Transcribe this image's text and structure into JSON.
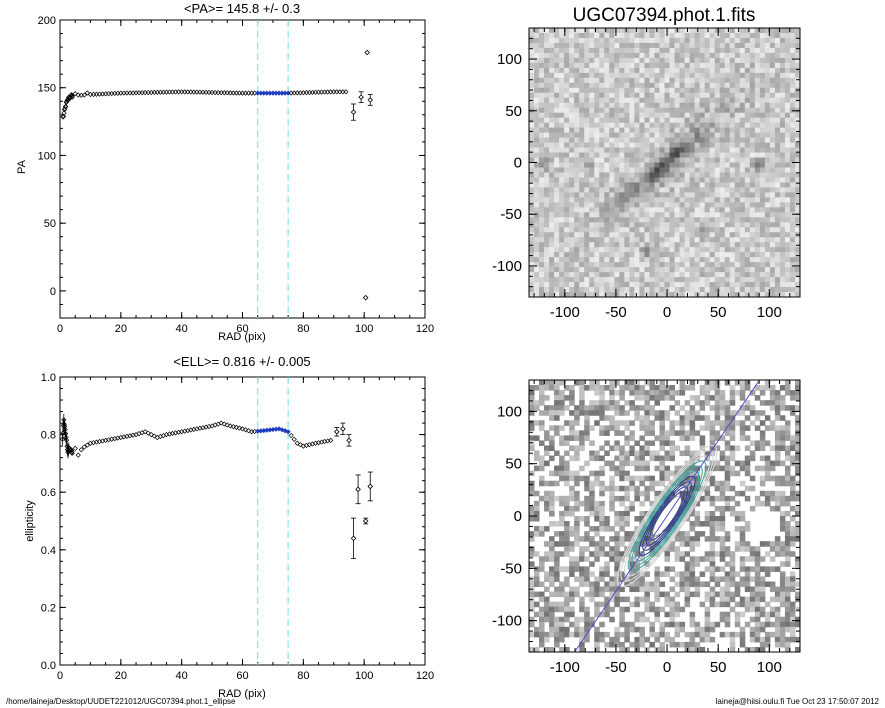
{
  "footer": {
    "left": "/home/laineja/Desktop/UUDET221012/UGC07394.phot.1_ellipse",
    "right": "laineja@hiisi.oulu.fi  Tue Oct 23 17:50:07 2012"
  },
  "colors": {
    "markers": "#000000",
    "highlight": "#1f3fbf",
    "vline": "#7fe6f0",
    "axisline": "#5050c8",
    "contour": "#2f3f8f"
  },
  "chart_data": [
    {
      "type": "scatter",
      "title": "<PA>= 145.8 +/-   0.3",
      "xlabel": "RAD (pix)",
      "ylabel": "PA",
      "xlim": [
        0,
        120
      ],
      "ylim": [
        -20,
        200
      ],
      "xticks": [
        0,
        20,
        40,
        60,
        80,
        100,
        120
      ],
      "yticks": [
        0,
        50,
        100,
        150,
        200
      ],
      "vlines": [
        65,
        75
      ],
      "highlight_range": [
        65,
        75
      ],
      "errorbar_points": [
        {
          "x": 96.5,
          "y": 132,
          "err": 6
        },
        {
          "x": 99,
          "y": 143,
          "err": 4
        },
        {
          "x": 102,
          "y": 141,
          "err": 4
        }
      ],
      "outlier_points": [
        {
          "x": 101,
          "y": 176
        },
        {
          "x": 100.5,
          "y": -5
        }
      ],
      "profile": [
        {
          "x": 1,
          "y": 128
        },
        {
          "x": 1.5,
          "y": 133
        },
        {
          "x": 2,
          "y": 138
        },
        {
          "x": 3,
          "y": 143
        },
        {
          "x": 5,
          "y": 145
        },
        {
          "x": 10,
          "y": 145
        },
        {
          "x": 20,
          "y": 146
        },
        {
          "x": 40,
          "y": 147
        },
        {
          "x": 60,
          "y": 146
        },
        {
          "x": 75,
          "y": 146
        },
        {
          "x": 90,
          "y": 147
        },
        {
          "x": 94,
          "y": 147
        }
      ]
    },
    {
      "type": "scatter",
      "title": "<ELL>= 0.816 +/-  0.005",
      "xlabel": "RAD (pix)",
      "ylabel": "ellipticity",
      "xlim": [
        0,
        120
      ],
      "ylim": [
        0.0,
        1.0
      ],
      "xticks": [
        0,
        20,
        40,
        60,
        80,
        100,
        120
      ],
      "yticks": [
        0.0,
        0.2,
        0.4,
        0.6,
        0.8,
        1.0
      ],
      "ytick_labels": [
        "0.0",
        "0.2",
        "0.4",
        "0.6",
        "0.8",
        "1.0"
      ],
      "vlines": [
        65,
        75
      ],
      "highlight_range": [
        65,
        75
      ],
      "errorbar_points": [
        {
          "x": 91,
          "y": 0.81,
          "err": 0.015
        },
        {
          "x": 93,
          "y": 0.82,
          "err": 0.02
        },
        {
          "x": 95,
          "y": 0.78,
          "err": 0.02
        },
        {
          "x": 96.5,
          "y": 0.44,
          "err": 0.07
        },
        {
          "x": 98,
          "y": 0.61,
          "err": 0.05
        },
        {
          "x": 100.5,
          "y": 0.5,
          "err": 0.01
        },
        {
          "x": 102,
          "y": 0.62,
          "err": 0.05
        }
      ],
      "profile": [
        {
          "x": 0.8,
          "y": 0.78
        },
        {
          "x": 1.2,
          "y": 0.85
        },
        {
          "x": 1.6,
          "y": 0.83
        },
        {
          "x": 2,
          "y": 0.79
        },
        {
          "x": 2.5,
          "y": 0.74
        },
        {
          "x": 3,
          "y": 0.75
        },
        {
          "x": 4,
          "y": 0.74
        },
        {
          "x": 5,
          "y": 0.75
        },
        {
          "x": 6,
          "y": 0.73
        },
        {
          "x": 8,
          "y": 0.76
        },
        {
          "x": 10,
          "y": 0.77
        },
        {
          "x": 15,
          "y": 0.78
        },
        {
          "x": 20,
          "y": 0.79
        },
        {
          "x": 25,
          "y": 0.8
        },
        {
          "x": 28,
          "y": 0.81
        },
        {
          "x": 30,
          "y": 0.8
        },
        {
          "x": 32,
          "y": 0.79
        },
        {
          "x": 35,
          "y": 0.8
        },
        {
          "x": 40,
          "y": 0.81
        },
        {
          "x": 45,
          "y": 0.82
        },
        {
          "x": 50,
          "y": 0.83
        },
        {
          "x": 53,
          "y": 0.84
        },
        {
          "x": 56,
          "y": 0.83
        },
        {
          "x": 60,
          "y": 0.82
        },
        {
          "x": 63,
          "y": 0.81
        },
        {
          "x": 68,
          "y": 0.815
        },
        {
          "x": 72,
          "y": 0.82
        },
        {
          "x": 75,
          "y": 0.81
        },
        {
          "x": 78,
          "y": 0.77
        },
        {
          "x": 80,
          "y": 0.76
        },
        {
          "x": 84,
          "y": 0.77
        },
        {
          "x": 89,
          "y": 0.78
        }
      ]
    },
    {
      "type": "heatmap",
      "title": "UGC07394.phot.1.fits",
      "xlim": [
        -135,
        130
      ],
      "ylim": [
        -130,
        130
      ],
      "xticks": [
        -100,
        -50,
        0,
        50,
        100
      ],
      "yticks": [
        -100,
        -50,
        0,
        50,
        100
      ],
      "galaxy_pa_deg": 145.8,
      "bright_spots": [
        {
          "x": -122,
          "y": -2
        },
        {
          "x": -75,
          "y": -2
        },
        {
          "x": -43,
          "y": -35
        },
        {
          "x": 90,
          "y": -2
        },
        {
          "x": -20,
          "y": -85
        },
        {
          "x": 35,
          "y": -68
        }
      ]
    },
    {
      "type": "heatmap",
      "xlim": [
        -135,
        130
      ],
      "ylim": [
        -130,
        130
      ],
      "xticks": [
        -100,
        -50,
        0,
        50,
        100
      ],
      "yticks": [
        -100,
        -50,
        0,
        50,
        100
      ],
      "galaxy_pa_deg": 145.8,
      "contour_levels": 12
    }
  ]
}
